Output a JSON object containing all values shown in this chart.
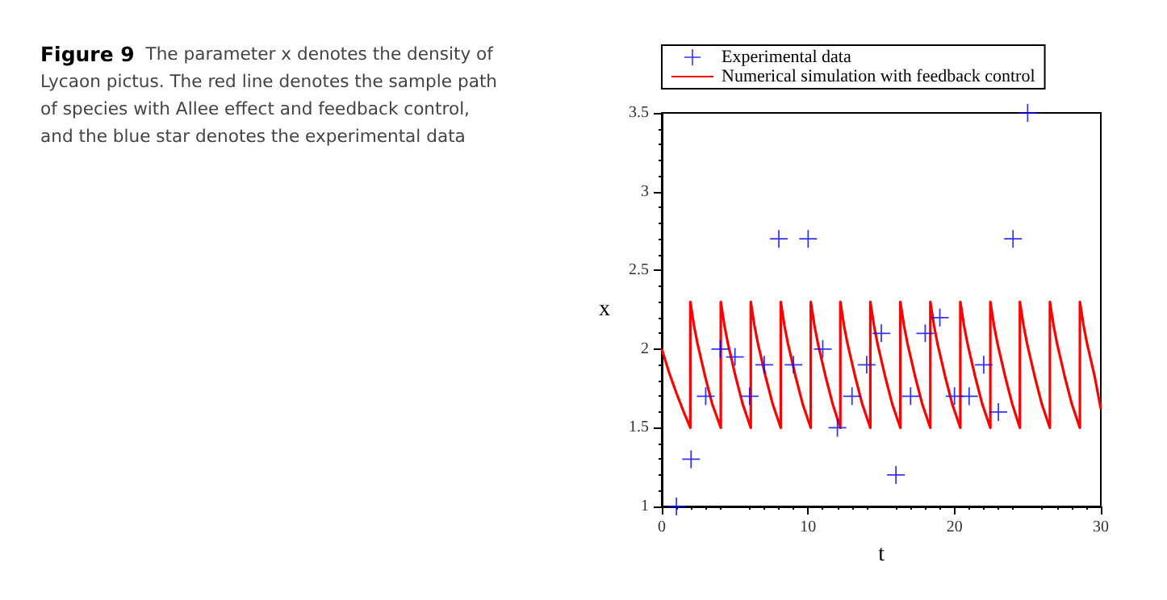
{
  "chart_data": {
    "type": "scatter",
    "title": "Figure 9",
    "subtitle": "The parameter x denotes the density of Lycaon pictus. The red line denotes the sample path of species with Allee effect and feedback control, and the blue star denotes the experimental data",
    "xlabel": "t",
    "ylabel": "x",
    "xlim": [
      0,
      30
    ],
    "ylim": [
      1,
      3.5
    ],
    "xticks": [
      0,
      10,
      20,
      30
    ],
    "yticks": [
      1,
      1.5,
      2,
      2.5,
      3,
      3.5
    ],
    "grid": false,
    "legend": "top",
    "series": [
      {
        "name": "Experimental data",
        "marker": "cross",
        "color": "#0000ff",
        "x": [
          1,
          2,
          3,
          4,
          5,
          6,
          7,
          8,
          9,
          10,
          11,
          12,
          13,
          14,
          15,
          16,
          17,
          18,
          19,
          20,
          21,
          22,
          23,
          24,
          25
        ],
        "values": [
          1.0,
          1.3,
          1.7,
          2.0,
          1.95,
          1.7,
          1.9,
          2.7,
          1.9,
          2.7,
          2.0,
          1.5,
          1.7,
          1.9,
          2.1,
          1.2,
          1.7,
          2.1,
          2.2,
          1.7,
          1.7,
          1.9,
          1.6,
          2.7,
          3.5
        ]
      },
      {
        "name": "Numerical simulation with feedback control",
        "type": "line",
        "marker": "none",
        "color": "#ff0000",
        "x": [
          0,
          0.5,
          1,
          1.5,
          1.95,
          1.95,
          2.2,
          2.45,
          2.95,
          3.45,
          4.03,
          4.03,
          4.28,
          4.53,
          5.03,
          5.53,
          6.08,
          6.08,
          6.33,
          6.58,
          7.08,
          7.58,
          8.13,
          8.13,
          8.38,
          8.63,
          9.13,
          9.63,
          10.18,
          10.18,
          10.43,
          10.68,
          11.18,
          11.68,
          12.2,
          12.2,
          12.45,
          12.7,
          13.2,
          13.7,
          14.25,
          14.25,
          14.5,
          14.75,
          15.25,
          15.75,
          16.3,
          16.3,
          16.55,
          16.8,
          17.3,
          17.8,
          18.35,
          18.35,
          18.6,
          18.85,
          19.35,
          19.85,
          20.4,
          20.4,
          20.65,
          20.9,
          21.4,
          21.9,
          22.45,
          22.45,
          22.7,
          22.95,
          23.45,
          23.95,
          24.47,
          24.47,
          24.72,
          24.97,
          25.47,
          25.97,
          26.52,
          26.52,
          26.77,
          27.02,
          27.52,
          28.02,
          28.57,
          28.57,
          28.82,
          29.07,
          29.57,
          30
        ],
        "values": [
          2,
          1.85,
          1.72,
          1.6,
          1.5,
          2.3,
          2.15,
          2.03,
          1.83,
          1.65,
          1.5,
          2.3,
          2.15,
          2.03,
          1.83,
          1.65,
          1.5,
          2.3,
          2.15,
          2.03,
          1.83,
          1.65,
          1.5,
          2.3,
          2.15,
          2.03,
          1.83,
          1.65,
          1.5,
          2.3,
          2.15,
          2.03,
          1.83,
          1.65,
          1.5,
          2.3,
          2.15,
          2.03,
          1.83,
          1.65,
          1.5,
          2.3,
          2.15,
          2.03,
          1.83,
          1.65,
          1.5,
          2.3,
          2.15,
          2.03,
          1.83,
          1.65,
          1.5,
          2.3,
          2.15,
          2.03,
          1.83,
          1.65,
          1.5,
          2.3,
          2.15,
          2.03,
          1.83,
          1.65,
          1.5,
          2.3,
          2.15,
          2.03,
          1.83,
          1.65,
          1.5,
          2.3,
          2.15,
          2.03,
          1.83,
          1.65,
          1.5,
          2.3,
          2.15,
          2.03,
          1.83,
          1.65,
          1.5,
          2.3,
          2.15,
          2.03,
          1.83,
          1.62
        ]
      }
    ]
  }
}
